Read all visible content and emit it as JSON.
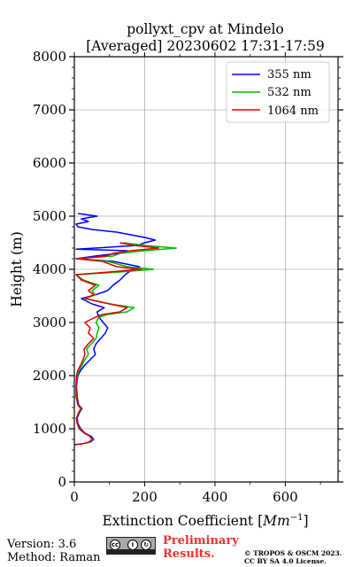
{
  "chart_data": {
    "type": "line",
    "title": "pollyxt_cpv at Mindelo",
    "subtitle": "[Averaged] 20230602 17:31-17:59",
    "xlabel_text": "Extinction Coefficient [",
    "xlabel_unit": "Mm",
    "xlabel_exp": "−1",
    "xlabel_close": "]",
    "ylabel": "Height (m)",
    "xlim": [
      0,
      750
    ],
    "ylim": [
      0,
      8000
    ],
    "xticks": [
      0,
      200,
      400,
      600
    ],
    "yticks": [
      0,
      1000,
      2000,
      3000,
      4000,
      5000,
      6000,
      7000,
      8000
    ],
    "grid": true,
    "legend_position": "top-right",
    "series": [
      {
        "name": "355 nm",
        "color": "#0000ff",
        "points": [
          [
            2,
            700
          ],
          [
            25,
            720
          ],
          [
            45,
            750
          ],
          [
            55,
            800
          ],
          [
            48,
            860
          ],
          [
            30,
            920
          ],
          [
            18,
            1000
          ],
          [
            10,
            1100
          ],
          [
            8,
            1200
          ],
          [
            14,
            1300
          ],
          [
            22,
            1380
          ],
          [
            12,
            1450
          ],
          [
            8,
            1600
          ],
          [
            6,
            1800
          ],
          [
            10,
            2000
          ],
          [
            18,
            2100
          ],
          [
            30,
            2200
          ],
          [
            45,
            2300
          ],
          [
            60,
            2400
          ],
          [
            55,
            2500
          ],
          [
            62,
            2600
          ],
          [
            75,
            2700
          ],
          [
            88,
            2800
          ],
          [
            95,
            2900
          ],
          [
            82,
            3000
          ],
          [
            70,
            3100
          ],
          [
            65,
            3200
          ],
          [
            85,
            3280
          ],
          [
            50,
            3350
          ],
          [
            20,
            3450
          ],
          [
            60,
            3520
          ],
          [
            95,
            3600
          ],
          [
            110,
            3700
          ],
          [
            130,
            3800
          ],
          [
            145,
            3900
          ],
          [
            165,
            4000
          ],
          [
            185,
            4050
          ],
          [
            110,
            4150
          ],
          [
            5,
            4200
          ],
          [
            60,
            4250
          ],
          [
            125,
            4300
          ],
          [
            150,
            4350
          ],
          [
            5,
            4380
          ],
          [
            60,
            4400
          ],
          [
            180,
            4450
          ],
          [
            200,
            4500
          ],
          [
            230,
            4550
          ],
          [
            200,
            4600
          ],
          [
            160,
            4650
          ],
          [
            120,
            4700
          ],
          [
            50,
            4750
          ],
          [
            10,
            4800
          ],
          [
            5,
            4850
          ],
          [
            40,
            4900
          ],
          [
            20,
            4950
          ],
          [
            65,
            5000
          ],
          [
            10,
            5050
          ]
        ]
      },
      {
        "name": "532 nm",
        "color": "#00bb00",
        "points": [
          [
            2,
            700
          ],
          [
            25,
            720
          ],
          [
            42,
            750
          ],
          [
            52,
            800
          ],
          [
            45,
            860
          ],
          [
            28,
            920
          ],
          [
            15,
            1000
          ],
          [
            8,
            1100
          ],
          [
            6,
            1200
          ],
          [
            12,
            1300
          ],
          [
            20,
            1380
          ],
          [
            10,
            1450
          ],
          [
            6,
            1600
          ],
          [
            5,
            1800
          ],
          [
            8,
            2000
          ],
          [
            14,
            2100
          ],
          [
            22,
            2200
          ],
          [
            30,
            2300
          ],
          [
            40,
            2400
          ],
          [
            35,
            2500
          ],
          [
            48,
            2600
          ],
          [
            62,
            2700
          ],
          [
            65,
            2800
          ],
          [
            70,
            2900
          ],
          [
            62,
            3000
          ],
          [
            70,
            3100
          ],
          [
            95,
            3150
          ],
          [
            150,
            3200
          ],
          [
            170,
            3280
          ],
          [
            100,
            3350
          ],
          [
            30,
            3450
          ],
          [
            60,
            3520
          ],
          [
            50,
            3600
          ],
          [
            70,
            3700
          ],
          [
            25,
            3800
          ],
          [
            5,
            3900
          ],
          [
            130,
            3950
          ],
          [
            225,
            4000
          ],
          [
            150,
            4050
          ],
          [
            95,
            4150
          ],
          [
            5,
            4200
          ],
          [
            110,
            4250
          ],
          [
            130,
            4300
          ],
          [
            200,
            4350
          ],
          [
            290,
            4400
          ],
          [
            200,
            4450
          ],
          [
            140,
            4500
          ]
        ]
      },
      {
        "name": "1064 nm",
        "color": "#dd0000",
        "points": [
          [
            2,
            700
          ],
          [
            25,
            720
          ],
          [
            42,
            750
          ],
          [
            50,
            800
          ],
          [
            44,
            860
          ],
          [
            28,
            920
          ],
          [
            14,
            1000
          ],
          [
            8,
            1100
          ],
          [
            6,
            1200
          ],
          [
            12,
            1300
          ],
          [
            18,
            1380
          ],
          [
            10,
            1450
          ],
          [
            5,
            1600
          ],
          [
            5,
            1800
          ],
          [
            6,
            2000
          ],
          [
            10,
            2100
          ],
          [
            18,
            2200
          ],
          [
            25,
            2300
          ],
          [
            30,
            2400
          ],
          [
            28,
            2500
          ],
          [
            40,
            2600
          ],
          [
            55,
            2700
          ],
          [
            40,
            2800
          ],
          [
            45,
            2900
          ],
          [
            30,
            3000
          ],
          [
            60,
            3100
          ],
          [
            80,
            3150
          ],
          [
            130,
            3200
          ],
          [
            150,
            3280
          ],
          [
            100,
            3350
          ],
          [
            30,
            3450
          ],
          [
            55,
            3520
          ],
          [
            40,
            3600
          ],
          [
            60,
            3700
          ],
          [
            20,
            3800
          ],
          [
            5,
            3900
          ],
          [
            100,
            3950
          ],
          [
            190,
            4000
          ],
          [
            120,
            4050
          ],
          [
            80,
            4150
          ],
          [
            5,
            4200
          ],
          [
            90,
            4250
          ],
          [
            110,
            4300
          ],
          [
            160,
            4350
          ],
          [
            240,
            4400
          ],
          [
            170,
            4450
          ],
          [
            130,
            4500
          ]
        ]
      }
    ]
  },
  "footer": {
    "version": "Version: 3.6",
    "method": "Method: Raman",
    "license_badge": "cc by sa",
    "preliminary_line1": "Preliminary",
    "preliminary_line2": "Results.",
    "copyright_line1": "© TROPOS & OSCM 2023.",
    "copyright_line2": "CC BY SA 4.0 License."
  }
}
